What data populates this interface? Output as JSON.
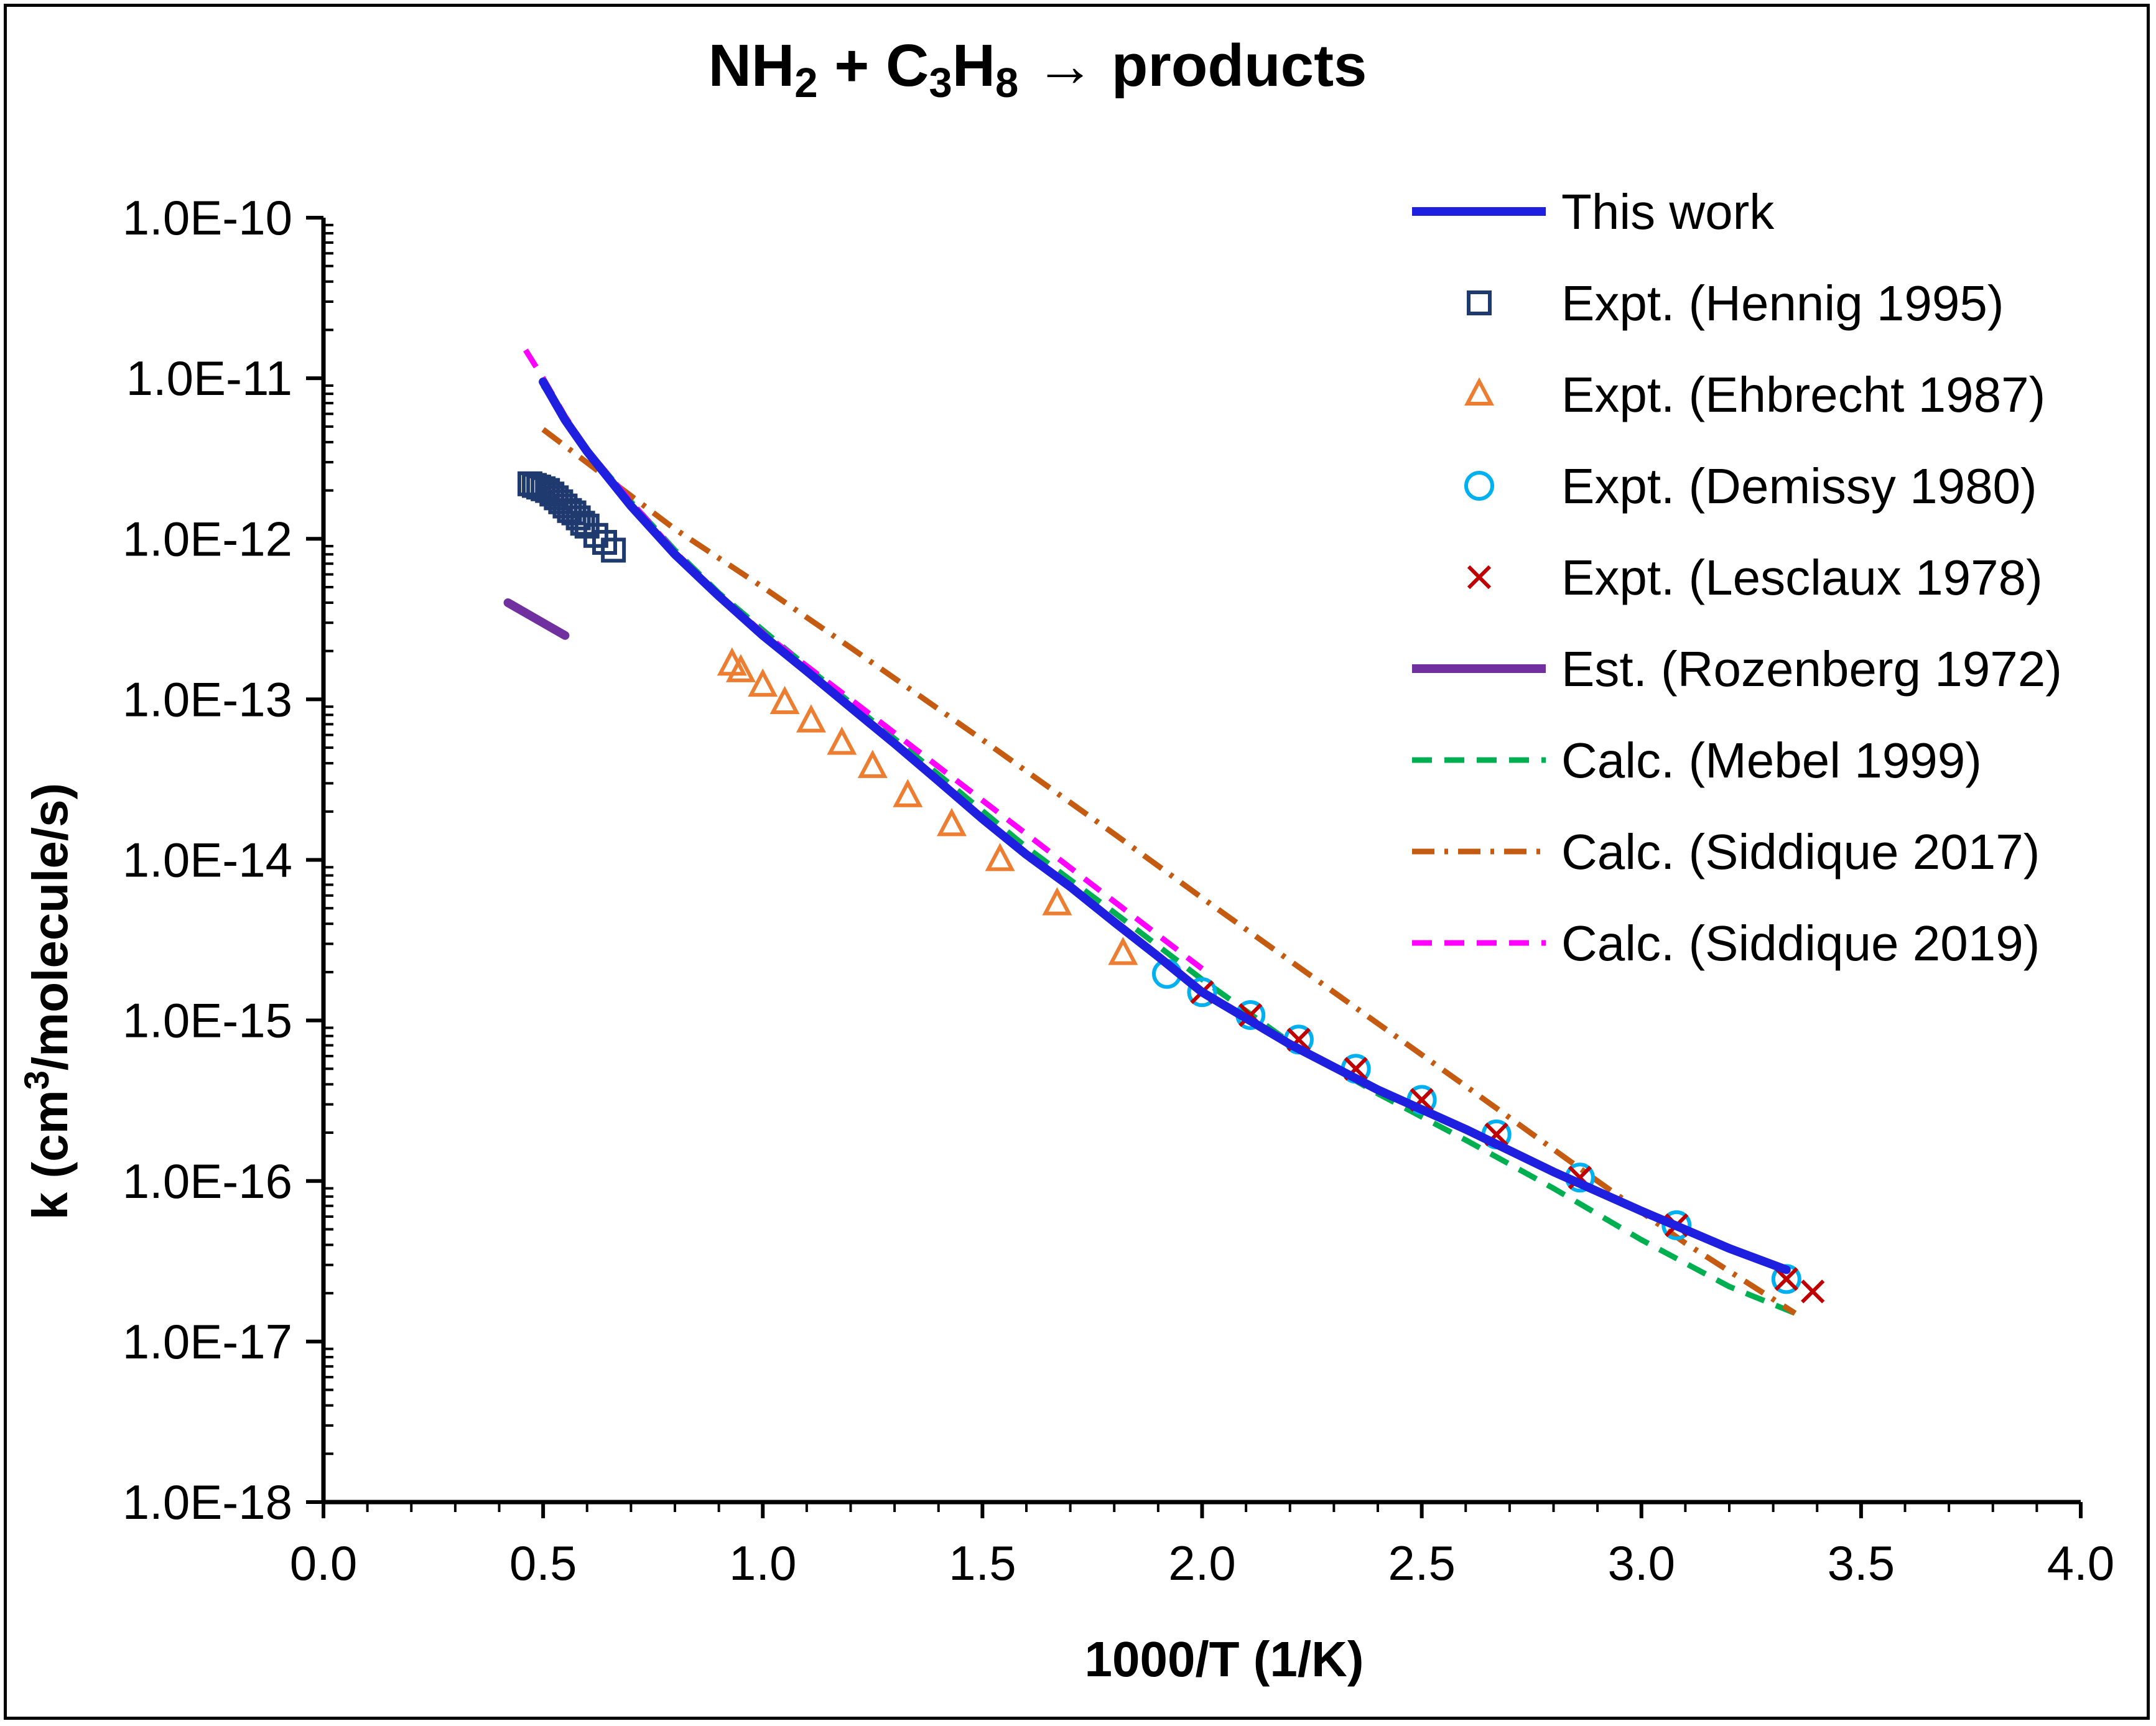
{
  "chart_data": {
    "type": "scatter",
    "title": {
      "text": "NH2 + C3H8 → products",
      "parts": [
        {
          "text": "NH",
          "sub": false
        },
        {
          "text": "2",
          "sub": true
        },
        {
          "text": " + C",
          "sub": false
        },
        {
          "text": "3",
          "sub": true
        },
        {
          "text": "H",
          "sub": false
        },
        {
          "text": "8",
          "sub": true
        },
        {
          "text": " → products",
          "sub": false
        }
      ]
    },
    "xlabel": "1000/T (1/K)",
    "ylabel": {
      "text": "k (cm3/molecule/s)",
      "parts": [
        {
          "text": "k (cm",
          "sup": false
        },
        {
          "text": "3",
          "sup": true
        },
        {
          "text": "/molecule/s)",
          "sup": false
        }
      ]
    },
    "xlim": [
      0.0,
      4.0
    ],
    "ylim": [
      1e-18,
      1e-10
    ],
    "yscale": "log",
    "grid": false,
    "legend_position": "top-right",
    "x_ticks": [
      0.0,
      0.5,
      1.0,
      1.5,
      2.0,
      2.5,
      3.0,
      3.5,
      4.0
    ],
    "x_tick_labels": [
      "0.0",
      "0.5",
      "1.0",
      "1.5",
      "2.0",
      "2.5",
      "3.0",
      "3.5",
      "4.0"
    ],
    "y_ticks": [
      1e-10,
      1e-11,
      1e-12,
      1e-13,
      1e-14,
      1e-15,
      1e-16,
      1e-17,
      1e-18
    ],
    "y_tick_labels": [
      "1.0E-10",
      "1.0E-11",
      "1.0E-12",
      "1.0E-13",
      "1.0E-14",
      "1.0E-15",
      "1.0E-16",
      "1.0E-17",
      "1.0E-18"
    ],
    "series": [
      {
        "name": "This work",
        "style": "line",
        "color": "#1f1fe0",
        "dash": "solid",
        "width": 14,
        "x": [
          0.5,
          0.55,
          0.6,
          0.7,
          0.8,
          0.9,
          1.0,
          1.1,
          1.2,
          1.3,
          1.4,
          1.5,
          1.6,
          1.7,
          1.8,
          1.9,
          2.0,
          2.2,
          2.4,
          2.6,
          2.8,
          3.0,
          3.2,
          3.33
        ],
        "y": [
          9.5e-12,
          5.5e-12,
          3.5e-12,
          1.6e-12,
          8e-13,
          4.4e-13,
          2.5e-13,
          1.5e-13,
          8.9e-14,
          5.3e-14,
          3.1e-14,
          1.8e-14,
          1.08e-14,
          6.8e-15,
          4.1e-15,
          2.5e-15,
          1.5e-15,
          7.1e-16,
          3.7e-16,
          2.1e-16,
          1.14e-16,
          6.5e-17,
          3.8e-17,
          2.8e-17
        ]
      },
      {
        "name": "Expt. (Hennig 1995)",
        "style": "marker",
        "marker": "square",
        "color": "#1f3a6e",
        "x": [
          0.47,
          0.48,
          0.49,
          0.5,
          0.51,
          0.52,
          0.53,
          0.54,
          0.55,
          0.56,
          0.57,
          0.58,
          0.59,
          0.6,
          0.62,
          0.64,
          0.66
        ],
        "y": [
          2.2e-12,
          2.15e-12,
          2.1e-12,
          2.05e-12,
          2e-12,
          1.9e-12,
          1.8e-12,
          1.7e-12,
          1.6e-12,
          1.5e-12,
          1.45e-12,
          1.35e-12,
          1.25e-12,
          1.2e-12,
          1.05e-12,
          9.5e-13,
          8.5e-13
        ]
      },
      {
        "name": "Expt. (Ehbrecht 1987)",
        "style": "marker",
        "marker": "triangle",
        "color": "#ed7d31",
        "x": [
          0.93,
          0.95,
          1.0,
          1.05,
          1.11,
          1.18,
          1.25,
          1.33,
          1.43,
          1.54,
          1.67,
          1.82
        ],
        "y": [
          1.65e-13,
          1.5e-13,
          1.22e-13,
          9.5e-14,
          7.3e-14,
          5.3e-14,
          3.8e-14,
          2.5e-14,
          1.65e-14,
          1e-14,
          5.3e-15,
          2.6e-15
        ]
      },
      {
        "name": "Expt. (Demissy 1980)",
        "style": "marker",
        "marker": "circle",
        "color": "#00b0f0",
        "x": [
          1.92,
          2.0,
          2.11,
          2.22,
          2.35,
          2.5,
          2.67,
          2.86,
          3.08,
          3.33
        ],
        "y": [
          1.95e-15,
          1.5e-15,
          1.08e-15,
          7.6e-16,
          5e-16,
          3.2e-16,
          1.95e-16,
          1.05e-16,
          5.3e-17,
          2.45e-17
        ]
      },
      {
        "name": "Expt. (Lesclaux 1978)",
        "style": "marker",
        "marker": "cross",
        "color": "#c00000",
        "x": [
          2.0,
          2.11,
          2.22,
          2.35,
          2.5,
          2.67,
          2.86,
          3.08,
          3.33,
          3.39
        ],
        "y": [
          1.5e-15,
          1.08e-15,
          7.6e-16,
          5e-16,
          3.2e-16,
          1.95e-16,
          1.05e-16,
          5.3e-17,
          2.45e-17,
          2.05e-17
        ]
      },
      {
        "name": "Est. (Rozenberg 1972)",
        "style": "line",
        "color": "#7030a0",
        "dash": "solid",
        "width": 14,
        "x": [
          0.42,
          0.55
        ],
        "y": [
          4e-13,
          2.5e-13
        ]
      },
      {
        "name": "Calc. (Mebel 1999)",
        "style": "line",
        "color": "#00b050",
        "dash": "dash",
        "width": 9,
        "x": [
          0.5,
          0.6,
          0.7,
          0.8,
          0.9,
          1.0,
          1.2,
          1.4,
          1.6,
          1.8,
          2.0,
          2.2,
          2.4,
          2.6,
          2.8,
          3.0,
          3.2,
          3.35
        ],
        "y": [
          9e-12,
          3.6e-12,
          1.7e-12,
          8.5e-13,
          4.6e-13,
          2.7e-13,
          9.5e-14,
          3.4e-14,
          1.2e-14,
          4.7e-15,
          1.8e-15,
          7.3e-16,
          3.5e-16,
          1.8e-16,
          9e-17,
          4.3e-17,
          2.2e-17,
          1.5e-17
        ]
      },
      {
        "name": "Calc. (Siddique 2017)",
        "style": "line",
        "color": "#c55a11",
        "dash": "dashdot",
        "width": 9,
        "x": [
          0.5,
          0.8,
          1.0,
          1.2,
          1.5,
          1.8,
          2.0,
          2.3,
          2.6,
          2.9,
          3.1,
          3.35
        ],
        "y": [
          4.8e-12,
          1.15e-12,
          5e-13,
          2.1e-13,
          5.6e-14,
          1.45e-14,
          5.8e-15,
          1.5e-15,
          3.9e-16,
          1e-16,
          4.1e-17,
          1.5e-17
        ]
      },
      {
        "name": "Calc. (Siddique 2019)",
        "style": "line",
        "color": "#ff00ff",
        "dash": "dash",
        "width": 9,
        "x": [
          0.46,
          0.5,
          0.55,
          0.6,
          0.7,
          0.8,
          0.9,
          1.0,
          1.2,
          1.4,
          1.6,
          1.8,
          2.0
        ],
        "y": [
          1.5e-11,
          1e-11,
          5.8e-12,
          3.6e-12,
          1.7e-12,
          8.3e-13,
          4.5e-13,
          2.6e-13,
          1e-13,
          3.8e-14,
          1.45e-14,
          5.5e-15,
          2.1e-15
        ]
      }
    ]
  }
}
